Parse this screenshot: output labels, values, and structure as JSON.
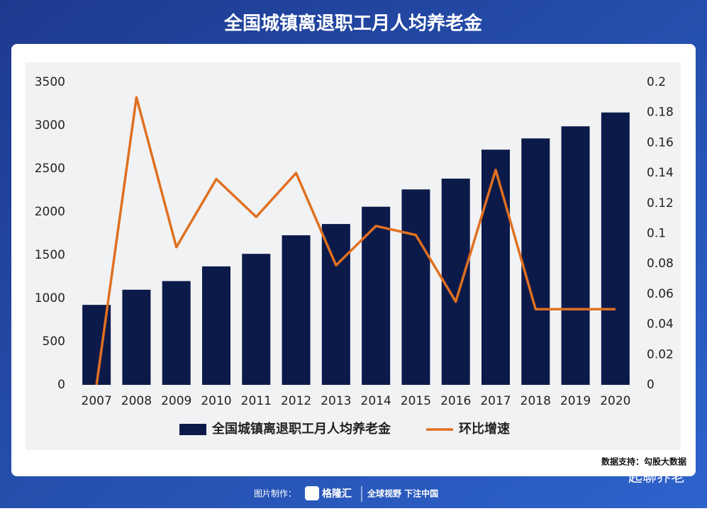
{
  "chart_data": {
    "type": "bar",
    "title": "全国城镇离退职工月人均养老金",
    "categories": [
      "2007",
      "2008",
      "2009",
      "2010",
      "2011",
      "2012",
      "2013",
      "2014",
      "2015",
      "2016",
      "2017",
      "2018",
      "2019",
      "2020"
    ],
    "series": [
      {
        "name": "全国城镇离退职工月人均养老金",
        "type": "bar",
        "color": "#0c1a4a",
        "values": [
          925,
          1100,
          1200,
          1370,
          1515,
          1730,
          1860,
          2060,
          2260,
          2385,
          2720,
          2850,
          2990,
          3150
        ]
      },
      {
        "name": "环比增速",
        "type": "line",
        "axis": "y2",
        "color": "#e07020",
        "values": [
          0,
          0.19,
          0.091,
          0.136,
          0.111,
          0.14,
          0.079,
          0.105,
          0.099,
          0.055,
          0.142,
          0.05,
          0.05,
          0.05
        ]
      }
    ],
    "ylim": [
      0,
      3500
    ],
    "yticks": [
      0,
      500,
      1000,
      1500,
      2000,
      2500,
      3000,
      3500
    ],
    "y2lim": [
      0,
      0.2
    ],
    "y2ticks": [
      0,
      0.02,
      0.04,
      0.06,
      0.08,
      0.1,
      0.12,
      0.14,
      0.16,
      0.18,
      0.2
    ],
    "grid": false,
    "legend": "bottom"
  },
  "source": "数据支持：勾股大数据",
  "account": "起聊养老",
  "footer": {
    "made_by": "图片制作：",
    "brand": "格隆汇",
    "slogan": "全球视野 下注中国"
  }
}
